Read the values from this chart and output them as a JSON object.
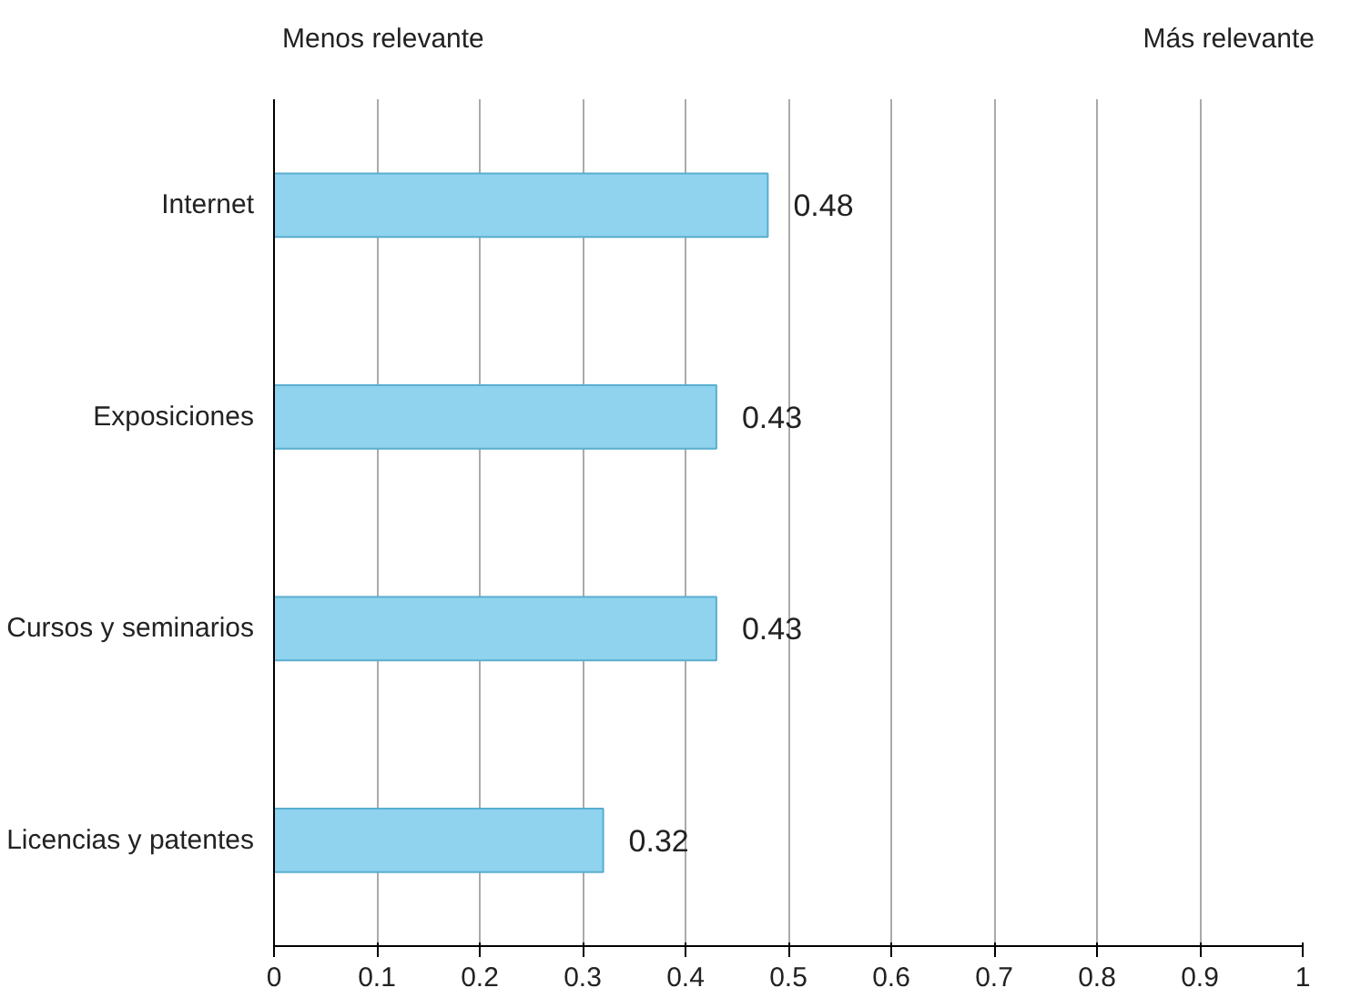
{
  "chart_data": {
    "type": "bar",
    "orientation": "horizontal",
    "categories": [
      "Internet",
      "Exposiciones",
      "Cursos y seminarios",
      "Licencias y patentes"
    ],
    "values": [
      0.48,
      0.43,
      0.43,
      0.32
    ],
    "color": "#8fd3ee",
    "xlim": [
      0,
      1
    ],
    "xticks": [
      0,
      0.1,
      0.2,
      0.3,
      0.4,
      0.5,
      0.6,
      0.7,
      0.8,
      0.9,
      1
    ],
    "grid": "x",
    "data_labels": true,
    "annotations": [
      "Menos relevante",
      "Más relevante"
    ]
  }
}
